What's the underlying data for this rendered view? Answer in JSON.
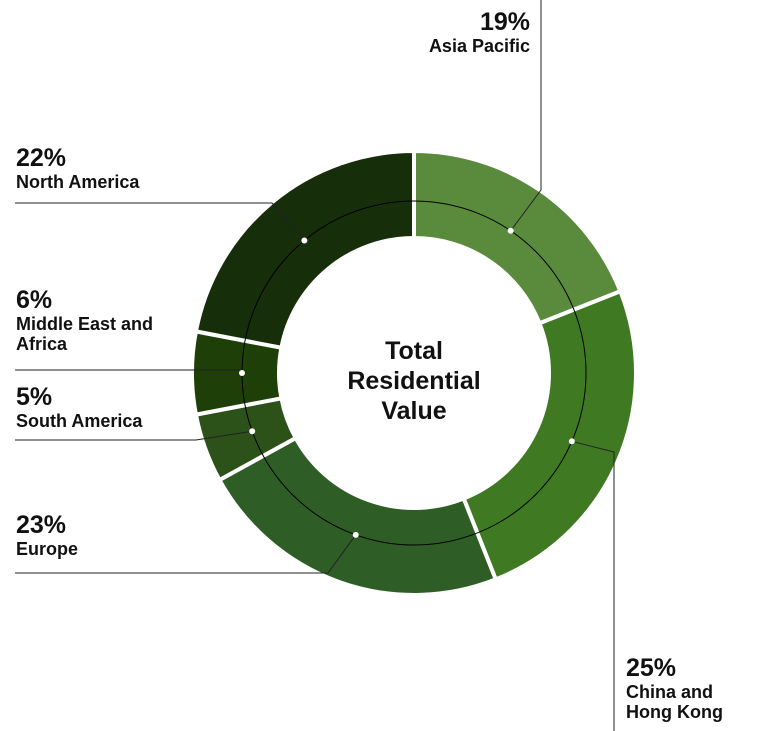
{
  "chart_data": {
    "type": "donut",
    "title": "Total Residential Value",
    "categories": [
      "Asia Pacific",
      "China and Hong Kong",
      "Europe",
      "South America",
      "Middle East and Africa",
      "North America"
    ],
    "values": [
      19,
      25,
      23,
      5,
      6,
      22
    ],
    "value_labels": [
      "19%",
      "25%",
      "23%",
      "5%",
      "6%",
      "22%"
    ],
    "colors": [
      "#5a8a3c",
      "#3f7a22",
      "#2e5e26",
      "#2d5219",
      "#1f3f08",
      "#172e0b"
    ]
  }
}
